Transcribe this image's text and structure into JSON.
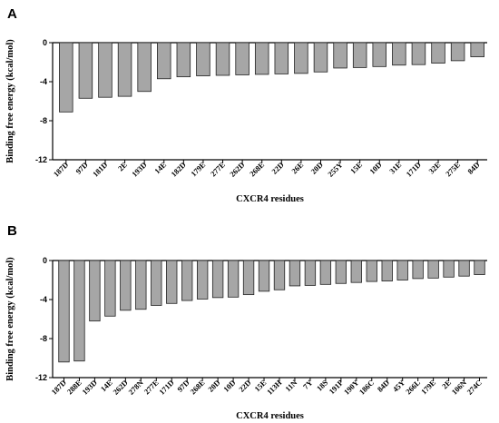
{
  "chart_data": [
    {
      "type": "bar",
      "panel_label": "A",
      "xlabel": "CXCR4 residues",
      "ylabel": "Binding free energy (kcal/mol)",
      "ylim": [
        -12,
        0
      ],
      "yticks": [
        0,
        -4,
        -8,
        -12
      ],
      "categories": [
        "187D",
        "97D",
        "181D",
        "2E",
        "193D",
        "14E",
        "182D",
        "179E",
        "277E",
        "262D",
        "268E",
        "22D",
        "26E",
        "20D",
        "255Y",
        "15E",
        "10D",
        "31E",
        "171D",
        "32E",
        "275E",
        "84D"
      ],
      "values": [
        -7.1,
        -5.7,
        -5.6,
        -5.5,
        -5.0,
        -3.7,
        -3.5,
        -3.4,
        -3.35,
        -3.3,
        -3.25,
        -3.2,
        -3.15,
        -3.0,
        -2.6,
        -2.55,
        -2.45,
        -2.3,
        -2.25,
        -2.1,
        -1.85,
        -1.45
      ]
    },
    {
      "type": "bar",
      "panel_label": "B",
      "xlabel": "CXCR4 residues",
      "ylabel": "Binding free energy (kcal/mol)",
      "ylim": [
        -12,
        0
      ],
      "yticks": [
        0,
        -4,
        -8,
        -12
      ],
      "categories": [
        "187D",
        "288E",
        "193D",
        "14E",
        "262D",
        "278N",
        "277E",
        "171D",
        "97D",
        "268E",
        "20D",
        "10D",
        "22D",
        "15E",
        "113H",
        "11N",
        "7Y",
        "18S",
        "191P",
        "190Y",
        "186C",
        "84D",
        "45Y",
        "266L",
        "179E",
        "2E",
        "106N",
        "274C"
      ],
      "values": [
        -10.4,
        -10.3,
        -6.2,
        -5.7,
        -5.1,
        -5.0,
        -4.6,
        -4.4,
        -4.1,
        -3.95,
        -3.8,
        -3.75,
        -3.5,
        -3.15,
        -3.0,
        -2.6,
        -2.55,
        -2.45,
        -2.35,
        -2.25,
        -2.15,
        -2.1,
        -2.0,
        -1.85,
        -1.8,
        -1.7,
        -1.6,
        -1.45
      ]
    }
  ]
}
